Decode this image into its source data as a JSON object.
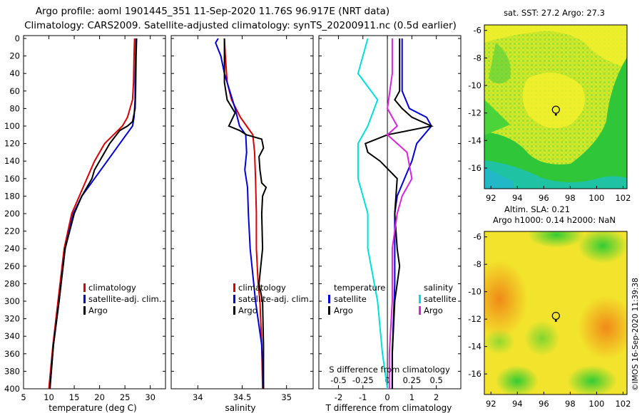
{
  "header": {
    "title_line1": "Argo profile: aoml 1901445_351 11-Sep-2020 11.76S 96.917E (NRT data)",
    "title_line2": "Climatology: CARS2009. Satellite-adjusted climatology: synTS_20200911.nc (0.5d earlier)"
  },
  "watermark": "©IMOS 16-Sep-2020 11:39:38",
  "colors": {
    "clim": "#dd0000",
    "sat": "#0000dd",
    "argo": "#000000",
    "sal_sat": "#00e0e0",
    "sal_argo": "#dd22dd"
  },
  "chart_data": [
    {
      "type": "line",
      "name": "temperature",
      "xlabel": "temperature (deg C)",
      "xticks": [
        5,
        10,
        15,
        20,
        25,
        30
      ],
      "xlim": [
        5,
        33
      ],
      "ylim": [
        0,
        400
      ],
      "yticks": [
        0,
        20,
        40,
        60,
        80,
        100,
        120,
        140,
        160,
        180,
        200,
        220,
        240,
        260,
        280,
        300,
        320,
        340,
        360,
        380,
        400
      ],
      "legend": [
        "climatology",
        "satellite-adj. clim.",
        "Argo"
      ],
      "series": [
        {
          "name": "climatology",
          "color": "#dd0000",
          "depth": [
            0,
            20,
            50,
            70,
            90,
            100,
            120,
            140,
            160,
            180,
            200,
            240,
            300,
            350,
            400
          ],
          "values": [
            26.9,
            26.8,
            26.7,
            26.5,
            25.5,
            24.5,
            21.0,
            19.0,
            17.5,
            16.0,
            14.5,
            13.0,
            11.8,
            10.8,
            10.0
          ]
        },
        {
          "name": "satellite-adj. clim.",
          "color": "#0000dd",
          "depth": [
            0,
            20,
            50,
            70,
            90,
            100,
            120,
            140,
            160,
            180,
            200,
            240,
            300,
            350,
            400
          ],
          "values": [
            27.2,
            27.1,
            27.0,
            27.0,
            26.8,
            26.5,
            24.0,
            21.5,
            19.0,
            16.5,
            14.8,
            13.2,
            12.0,
            10.9,
            10.2
          ]
        },
        {
          "name": "Argo",
          "color": "#000000",
          "depth": [
            0,
            20,
            60,
            80,
            95,
            100,
            105,
            120,
            140,
            150,
            160,
            180,
            200,
            240,
            300,
            350,
            400
          ],
          "values": [
            27.3,
            27.2,
            27.1,
            27.0,
            26.5,
            25.5,
            24.0,
            22.0,
            20.0,
            19.0,
            18.5,
            16.5,
            15.0,
            13.2,
            12.0,
            10.9,
            10.2
          ]
        }
      ]
    },
    {
      "type": "line",
      "name": "salinity",
      "xlabel": "salinity",
      "xticks": [
        34,
        34.5,
        35
      ],
      "xlim": [
        33.7,
        35.3
      ],
      "ylim": [
        0,
        400
      ],
      "legend": [
        "climatology",
        "satellite-adj. clim.",
        "Argo"
      ],
      "series": [
        {
          "name": "climatology",
          "color": "#dd0000",
          "depth": [
            0,
            20,
            50,
            70,
            90,
            100,
            110,
            130,
            160,
            200,
            240,
            280,
            300,
            350,
            400
          ],
          "values": [
            34.3,
            34.31,
            34.33,
            34.38,
            34.48,
            34.55,
            34.62,
            34.64,
            34.65,
            34.66,
            34.66,
            34.68,
            34.7,
            34.72,
            34.73
          ]
        },
        {
          "name": "satellite-adj. clim.",
          "color": "#0000dd",
          "depth": [
            0,
            5,
            20,
            40,
            60,
            80,
            100,
            110,
            130,
            150,
            170,
            200,
            240,
            300,
            350,
            400
          ],
          "values": [
            34.23,
            34.2,
            34.26,
            34.3,
            34.36,
            34.42,
            34.47,
            34.54,
            34.55,
            34.53,
            34.56,
            34.57,
            34.59,
            34.65,
            34.72,
            34.74
          ]
        },
        {
          "name": "Argo",
          "color": "#000000",
          "depth": [
            0,
            50,
            70,
            85,
            100,
            105,
            110,
            115,
            125,
            135,
            150,
            165,
            170,
            180,
            200,
            240,
            280,
            300,
            350,
            400
          ],
          "values": [
            34.3,
            34.3,
            34.33,
            34.42,
            34.35,
            34.47,
            34.55,
            34.72,
            34.74,
            34.69,
            34.7,
            34.72,
            34.77,
            34.73,
            34.72,
            34.73,
            34.69,
            34.73,
            34.74,
            34.74
          ]
        }
      ]
    },
    {
      "type": "line",
      "name": "differences",
      "xlabel": "T difference from climatology",
      "xlabel_top": "S difference from climatology",
      "xticks": [
        -2,
        -1,
        0,
        1,
        2
      ],
      "xticks_s": [
        -0.5,
        -0.25,
        0,
        0.25,
        0.5
      ],
      "xlim": [
        -2.8,
        3.0
      ],
      "ylim": [
        0,
        400
      ],
      "legend_headings": [
        "temperature",
        "salinity"
      ],
      "legend_t": [
        "satellite",
        "Argo"
      ],
      "legend_s": [
        "satellite",
        "Argo"
      ],
      "series": [
        {
          "name": "temperature satellite",
          "color": "#0000dd",
          "depth": [
            0,
            40,
            60,
            80,
            90,
            100,
            120,
            140,
            160,
            180,
            200,
            240,
            280,
            320,
            360,
            400
          ],
          "values": [
            0.6,
            0.6,
            0.6,
            0.9,
            1.6,
            1.8,
            1.2,
            1.0,
            0.7,
            0.4,
            0.3,
            0.3,
            0.3,
            0.25,
            0.2,
            0.2
          ]
        },
        {
          "name": "temperature Argo",
          "color": "#000000",
          "depth": [
            0,
            60,
            70,
            80,
            90,
            100,
            110,
            120,
            130,
            140,
            160,
            200,
            240,
            260,
            300,
            360,
            400
          ],
          "values": [
            0.5,
            0.5,
            0.3,
            0.6,
            1.0,
            1.8,
            0.0,
            -0.9,
            -0.8,
            -0.3,
            0.4,
            0.3,
            0.4,
            0.5,
            0.3,
            0.2,
            0.2
          ]
        },
        {
          "name": "salinity satellite",
          "color": "#00e0e0",
          "depth": [
            0,
            40,
            70,
            100,
            120,
            140,
            160,
            200,
            240,
            300,
            360,
            400
          ],
          "values": [
            -0.2,
            -0.3,
            -0.1,
            -0.2,
            -0.3,
            -0.3,
            -0.3,
            -0.2,
            -0.2,
            -0.1,
            -0.05,
            0.0
          ]
        },
        {
          "name": "salinity Argo",
          "color": "#dd22dd",
          "depth": [
            0,
            40,
            80,
            100,
            110,
            130,
            160,
            180,
            200,
            240,
            300,
            360,
            400
          ],
          "values": [
            0.05,
            0.05,
            0.0,
            0.1,
            0.0,
            0.2,
            0.25,
            0.15,
            0.1,
            0.05,
            0.05,
            0.02,
            0.02
          ]
        }
      ]
    },
    {
      "type": "heatmap",
      "name": "sst-map",
      "title": "sat. SST: 27.2 Argo: 27.3",
      "xticks": [
        92,
        94,
        96,
        98,
        100,
        102
      ],
      "yticks": [
        -6,
        -8,
        -10,
        -12,
        -14,
        -16
      ],
      "xlim": [
        91.5,
        102.3
      ],
      "ylim": [
        -17.5,
        -5.6
      ],
      "marker": {
        "lon": 96.917,
        "lat": -11.76
      }
    },
    {
      "type": "heatmap",
      "name": "sla-map",
      "title": "Altim. SLA: 0.21",
      "subtitle": "Argo h1000: 0.14 h2000: NaN",
      "xticks": [
        92,
        94,
        96,
        98,
        100,
        102
      ],
      "yticks": [
        -6,
        -8,
        -10,
        -12,
        -14,
        -16
      ],
      "xlim": [
        91.5,
        102.3
      ],
      "ylim": [
        -17.5,
        -5.6
      ],
      "marker": {
        "lon": 96.917,
        "lat": -11.76
      }
    }
  ]
}
